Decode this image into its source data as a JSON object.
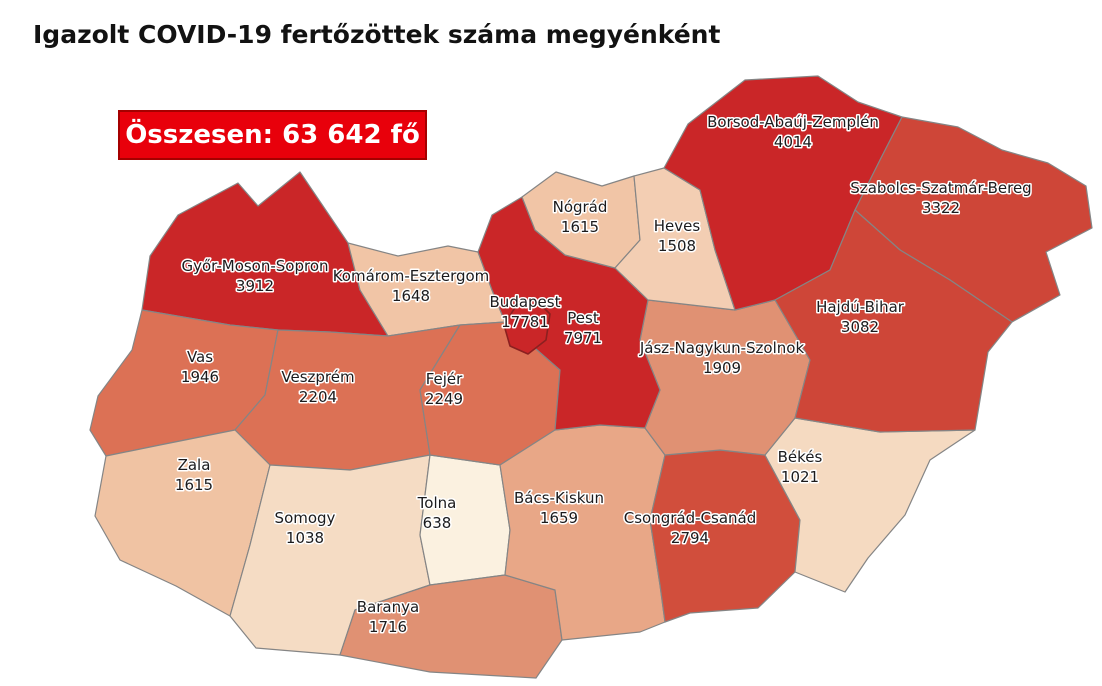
{
  "title": "Igazolt COVID-19 fertőzöttek száma megyénként",
  "total": {
    "label": "Összesen: 63 642 fő",
    "value": 63642,
    "unit": "fő",
    "box_color": "#E8000B",
    "text_color": "#FFFFFF"
  },
  "map": {
    "background": "#FFFFFF",
    "border_color": "#858585",
    "budapest_outline": "#8B2020"
  },
  "chart_data": {
    "type": "choropleth_map",
    "title": "Igazolt COVID-19 fertőzöttek száma megyénként",
    "total": 63642,
    "unit": "fő",
    "regions": [
      {
        "id": "budapest",
        "name": "Budapest",
        "value": 17781,
        "color": "#CA2628"
      },
      {
        "id": "pest",
        "name": "Pest",
        "value": 7971,
        "color": "#CA2628"
      },
      {
        "id": "borsod-abauj-zemplen",
        "name": "Borsod-Abaúj-Zemplén",
        "value": 4014,
        "color": "#CA2628"
      },
      {
        "id": "gyor-moson-sopron",
        "name": "Győr-Moson-Sopron",
        "value": 3912,
        "color": "#CA2628"
      },
      {
        "id": "szabolcs-szatmar-bereg",
        "name": "Szabolcs-Szatmár-Bereg",
        "value": 3322,
        "color": "#CE4638"
      },
      {
        "id": "hajdu-bihar",
        "name": "Hajdú-Bihar",
        "value": 3082,
        "color": "#CE4638"
      },
      {
        "id": "csongrad-csanad",
        "name": "Csongrád-Csanád",
        "value": 2794,
        "color": "#D14E3C"
      },
      {
        "id": "fejer",
        "name": "Fejér",
        "value": 2249,
        "color": "#DC7155"
      },
      {
        "id": "veszprem",
        "name": "Veszprém",
        "value": 2204,
        "color": "#DC7155"
      },
      {
        "id": "vas",
        "name": "Vas",
        "value": 1946,
        "color": "#DC7155"
      },
      {
        "id": "jasz-nagykun-szolnok",
        "name": "Jász-Nagykun-Szolnok",
        "value": 1909,
        "color": "#E09173"
      },
      {
        "id": "baranya",
        "name": "Baranya",
        "value": 1716,
        "color": "#E09173"
      },
      {
        "id": "bacs-kiskun",
        "name": "Bács-Kiskun",
        "value": 1659,
        "color": "#E8A787"
      },
      {
        "id": "komarom-esztergom",
        "name": "Komárom-Esztergom",
        "value": 1648,
        "color": "#F1C5A6"
      },
      {
        "id": "nograd",
        "name": "Nógrád",
        "value": 1615,
        "color": "#F1C5A6"
      },
      {
        "id": "zala",
        "name": "Zala",
        "value": 1615,
        "color": "#F0C3A3"
      },
      {
        "id": "heves",
        "name": "Heves",
        "value": 1508,
        "color": "#F3CEB3"
      },
      {
        "id": "somogy",
        "name": "Somogy",
        "value": 1038,
        "color": "#F5DCC4"
      },
      {
        "id": "bekes",
        "name": "Békés",
        "value": 1021,
        "color": "#F5DAC1"
      },
      {
        "id": "tolna",
        "name": "Tolna",
        "value": 638,
        "color": "#FBF1E0"
      }
    ]
  }
}
